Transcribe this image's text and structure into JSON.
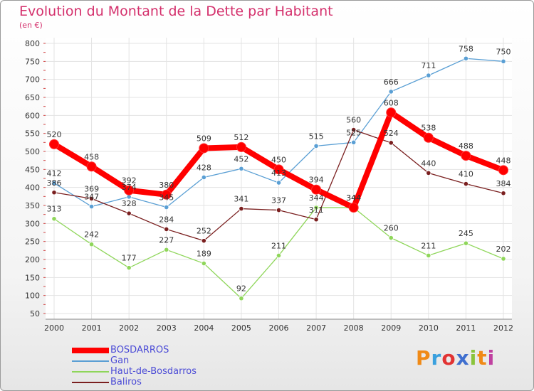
{
  "chart_data": {
    "type": "line",
    "title": "Evolution du Montant de la Dette par Habitant",
    "subtitle": "(en €)",
    "x": [
      "2000",
      "2001",
      "2002",
      "2003",
      "2004",
      "2005",
      "2006",
      "2007",
      "2008",
      "2009",
      "2010",
      "2011",
      "2012"
    ],
    "ylim": [
      50,
      800
    ],
    "yticks": [
      50,
      100,
      150,
      200,
      250,
      300,
      350,
      400,
      450,
      500,
      550,
      600,
      650,
      700,
      750,
      800
    ],
    "grid": true,
    "legend_position": "bottom-left",
    "series": [
      {
        "name": "BOSDARROS",
        "color": "#ff0000",
        "values": [
          520,
          458,
          392,
          380,
          509,
          512,
          450,
          394,
          344,
          608,
          538,
          488,
          448
        ]
      },
      {
        "name": "Gan",
        "color": "#5a9fd4",
        "values": [
          412,
          347,
          374,
          345,
          428,
          452,
          413,
          515,
          525,
          666,
          711,
          758,
          750
        ]
      },
      {
        "name": "Haut-de-Bosdarros",
        "color": "#8fd65a",
        "values": [
          313,
          242,
          177,
          227,
          189,
          92,
          211,
          344,
          344,
          260,
          211,
          245,
          202
        ]
      },
      {
        "name": "Baliros",
        "color": "#7a1f1f",
        "values": [
          386,
          369,
          328,
          284,
          252,
          341,
          337,
          311,
          560,
          524,
          440,
          410,
          384
        ]
      }
    ]
  },
  "logo": {
    "p": "P",
    "r": "r",
    "o": "o",
    "x": "x",
    "i": "i",
    "t": "t",
    "i2": "i"
  }
}
